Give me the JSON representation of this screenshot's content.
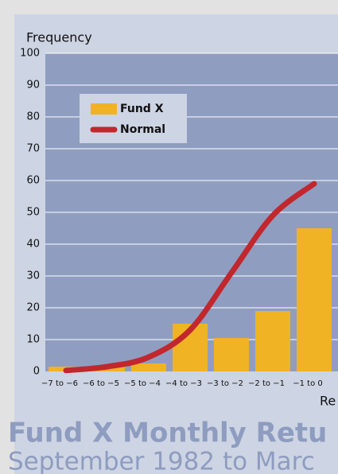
{
  "chart_data": {
    "type": "bar",
    "title": "Fund X Monthly Retu",
    "subtitle": "September 1982 to Marc",
    "ylabel": "Frequency",
    "xlabel": "Re",
    "categories": [
      "−7 to −6",
      "−6 to −5",
      "−5 to −4",
      "−4 to −3",
      "−3 to −2",
      "−2 to −1",
      "−1 to 0"
    ],
    "series": [
      {
        "name": "Fund X",
        "color": "#f0b323",
        "values": [
          1.5,
          1.5,
          2.5,
          15,
          10.5,
          19,
          45
        ]
      },
      {
        "name": "Normal",
        "color": "#c1272d",
        "type": "line",
        "values": [
          0.3,
          1.5,
          4.5,
          13,
          31,
          49,
          59
        ]
      }
    ],
    "ylim": [
      0,
      100
    ],
    "yticks": [
      0,
      10,
      20,
      30,
      40,
      50,
      60,
      70,
      80,
      90,
      100
    ],
    "grid": true,
    "legend": "upper left"
  }
}
